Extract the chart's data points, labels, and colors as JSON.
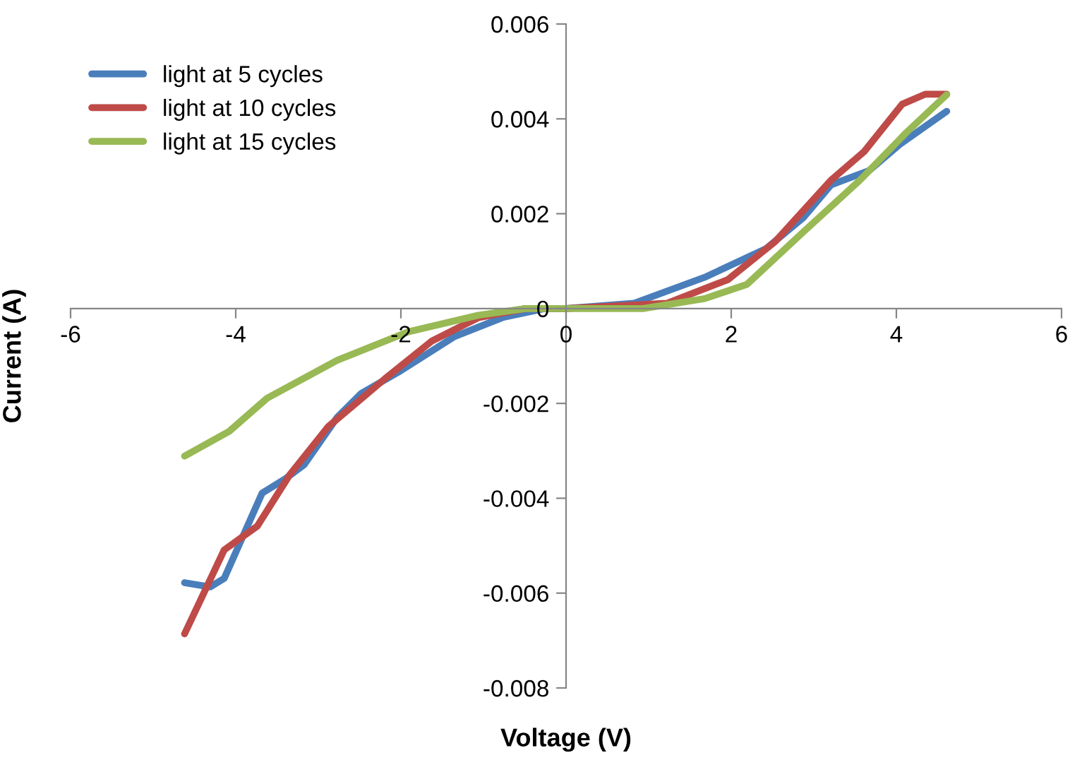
{
  "chart_data": {
    "type": "line",
    "xlabel": "Voltage (V)",
    "ylabel": "Current (A)",
    "xlim": [
      -6,
      6
    ],
    "xticks": [
      -6,
      -4,
      -2,
      0,
      2,
      4,
      6
    ],
    "ylim": [
      -0.008,
      0.006
    ],
    "yticks": [
      -0.008,
      -0.006,
      -0.004,
      -0.002,
      0,
      0.002,
      0.004,
      0.006
    ],
    "grid": false,
    "legend": "top left",
    "marker": "none",
    "line_style": "solid",
    "series": [
      {
        "name": "light at 5 cycles",
        "color": "#4a7ebb",
        "x": [
          -4.62,
          -4.31,
          -4.14,
          -3.91,
          -3.68,
          -3.4,
          -3.17,
          -2.77,
          -2.48,
          -2.03,
          -1.35,
          -0.77,
          -0.26,
          0,
          0.82,
          1.68,
          2.42,
          2.87,
          3.21,
          3.67,
          4.04,
          4.61
        ],
        "values": [
          -0.00578,
          -0.00587,
          -0.00569,
          -0.00479,
          -0.00389,
          -0.00359,
          -0.00329,
          -0.00229,
          -0.00179,
          -0.00134,
          -0.00059,
          -0.00019,
          0,
          0,
          0.00011,
          0.00066,
          0.00126,
          0.00191,
          0.00261,
          0.00291,
          0.00346,
          0.00416
        ]
      },
      {
        "name": "light at 10 cycles",
        "color": "#be4b48",
        "x": [
          -4.62,
          -4.14,
          -3.74,
          -3.34,
          -2.88,
          -2.2,
          -1.63,
          -1.06,
          -0.49,
          0,
          1.22,
          1.96,
          2.53,
          3.21,
          3.61,
          4.07,
          4.35,
          4.61
        ],
        "values": [
          -0.00686,
          -0.00509,
          -0.00459,
          -0.00349,
          -0.00249,
          -0.00149,
          -0.00069,
          -0.00019,
          0,
          0,
          0.00011,
          0.00061,
          0.00141,
          0.00271,
          0.00331,
          0.00431,
          0.00452,
          0.00452
        ]
      },
      {
        "name": "light at 15 cycles",
        "color": "#98b954",
        "x": [
          -4.62,
          -4.08,
          -3.62,
          -2.77,
          -1.91,
          -1.06,
          -0.49,
          0,
          0.93,
          1.68,
          2.19,
          2.87,
          3.56,
          4.12,
          4.61
        ],
        "values": [
          -0.00311,
          -0.00259,
          -0.00189,
          -0.00109,
          -0.00049,
          -0.00014,
          0,
          0,
          0,
          0.00021,
          0.00051,
          0.00161,
          0.00271,
          0.00371,
          0.00451
        ]
      }
    ]
  }
}
